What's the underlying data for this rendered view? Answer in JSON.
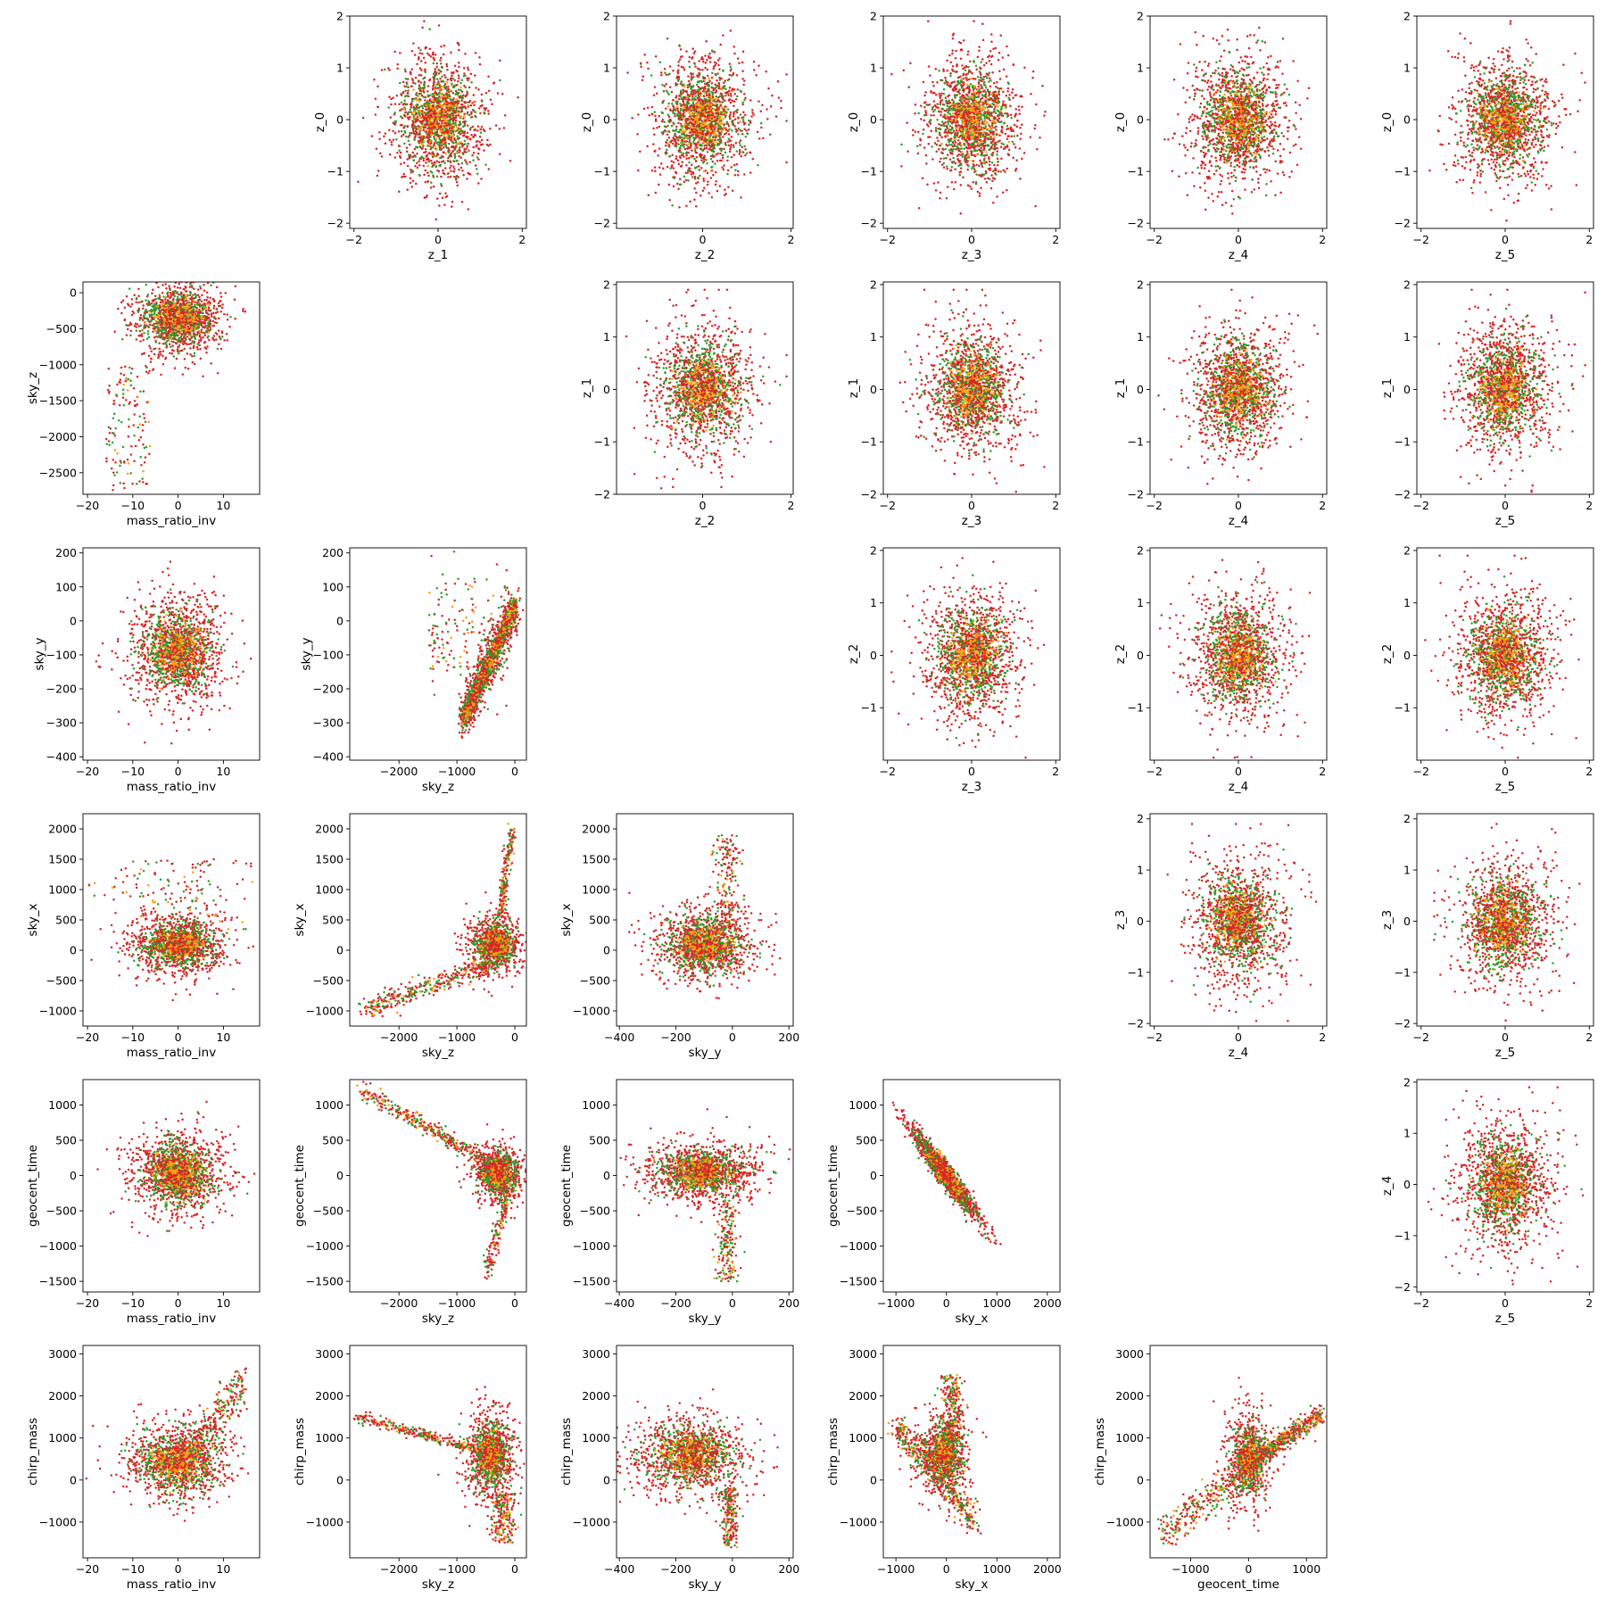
{
  "colors": {
    "red": "#d62728",
    "green": "#2ca02c",
    "orange": "#ff9f0e"
  },
  "variables": {
    "z_0": "z_0",
    "z_1": "z_1",
    "z_2": "z_2",
    "z_3": "z_3",
    "z_4": "z_4",
    "z_5": "z_5",
    "mass_ratio_inv": "mass_ratio_inv",
    "sky_z": "sky_z",
    "sky_y": "sky_y",
    "sky_x": "sky_x",
    "geocent_time": "geocent_time",
    "chirp_mass": "chirp_mass"
  },
  "chart_data": [
    {
      "type": "scatter",
      "row": 0,
      "col": 1,
      "xlabel": "z_1",
      "ylabel": "z_0",
      "xlim": [
        -2.1,
        2.1
      ],
      "ylim": [
        -2.1,
        2.0
      ],
      "xticks": [
        -2,
        0,
        2
      ],
      "yticks": [
        -2,
        -1,
        0,
        1,
        2
      ],
      "shape": "gaussian",
      "sigma": [
        0.6,
        0.65
      ]
    },
    {
      "type": "scatter",
      "row": 0,
      "col": 2,
      "xlabel": "z_2",
      "ylabel": "z_0",
      "xlim": [
        -1.95,
        2.05
      ],
      "ylim": [
        -2.1,
        2.0
      ],
      "xticks": [
        0,
        2
      ],
      "yticks": [
        -2,
        -1,
        0,
        1,
        2
      ],
      "shape": "gaussian",
      "sigma": [
        0.6,
        0.65
      ]
    },
    {
      "type": "scatter",
      "row": 0,
      "col": 3,
      "xlabel": "z_3",
      "ylabel": "z_0",
      "xlim": [
        -2.1,
        2.1
      ],
      "ylim": [
        -2.1,
        2.0
      ],
      "xticks": [
        -2,
        0,
        2
      ],
      "yticks": [
        -2,
        -1,
        0,
        1,
        2
      ],
      "shape": "gaussian",
      "sigma": [
        0.6,
        0.65
      ]
    },
    {
      "type": "scatter",
      "row": 0,
      "col": 4,
      "xlabel": "z_4",
      "ylabel": "z_0",
      "xlim": [
        -2.1,
        2.1
      ],
      "ylim": [
        -2.1,
        2.0
      ],
      "xticks": [
        -2,
        0,
        2
      ],
      "yticks": [
        -2,
        -1,
        0,
        1,
        2
      ],
      "shape": "gaussian",
      "sigma": [
        0.6,
        0.65
      ]
    },
    {
      "type": "scatter",
      "row": 0,
      "col": 5,
      "xlabel": "z_5",
      "ylabel": "z_0",
      "xlim": [
        -2.1,
        2.1
      ],
      "ylim": [
        -2.1,
        2.0
      ],
      "xticks": [
        -2,
        0,
        2
      ],
      "yticks": [
        -2,
        -1,
        0,
        1,
        2
      ],
      "shape": "gaussian",
      "sigma": [
        0.6,
        0.65
      ]
    },
    {
      "type": "scatter",
      "row": 1,
      "col": 0,
      "xlabel": "mass_ratio_inv",
      "ylabel": "sky_z",
      "xlim": [
        -21,
        18
      ],
      "ylim": [
        -2800,
        150
      ],
      "xticks": [
        -20,
        -10,
        0,
        10
      ],
      "yticks": [
        -2500,
        -2000,
        -1500,
        -1000,
        -500,
        0
      ],
      "shape": "skyz_q"
    },
    {
      "type": "scatter",
      "row": 1,
      "col": 2,
      "xlabel": "z_2",
      "ylabel": "z_1",
      "xlim": [
        -1.95,
        2.05
      ],
      "ylim": [
        -2.0,
        2.05
      ],
      "xticks": [
        0,
        2
      ],
      "yticks": [
        -2,
        -1,
        0,
        1,
        2
      ],
      "shape": "gaussian",
      "sigma": [
        0.6,
        0.65
      ]
    },
    {
      "type": "scatter",
      "row": 1,
      "col": 3,
      "xlabel": "z_3",
      "ylabel": "z_1",
      "xlim": [
        -2.1,
        2.1
      ],
      "ylim": [
        -2.0,
        2.05
      ],
      "xticks": [
        -2,
        0,
        2
      ],
      "yticks": [
        -2,
        -1,
        0,
        1,
        2
      ],
      "shape": "gaussian",
      "sigma": [
        0.6,
        0.65
      ]
    },
    {
      "type": "scatter",
      "row": 1,
      "col": 4,
      "xlabel": "z_4",
      "ylabel": "z_1",
      "xlim": [
        -2.1,
        2.1
      ],
      "ylim": [
        -2.0,
        2.05
      ],
      "xticks": [
        -2,
        0,
        2
      ],
      "yticks": [
        -2,
        -1,
        0,
        1,
        2
      ],
      "shape": "gaussian",
      "sigma": [
        0.6,
        0.65
      ]
    },
    {
      "type": "scatter",
      "row": 1,
      "col": 5,
      "xlabel": "z_5",
      "ylabel": "z_1",
      "xlim": [
        -2.1,
        2.1
      ],
      "ylim": [
        -2.0,
        2.05
      ],
      "xticks": [
        -2,
        0,
        2
      ],
      "yticks": [
        -2,
        -1,
        0,
        1,
        2
      ],
      "shape": "gaussian",
      "sigma": [
        0.6,
        0.65
      ]
    },
    {
      "type": "scatter",
      "row": 2,
      "col": 0,
      "xlabel": "mass_ratio_inv",
      "ylabel": "sky_y",
      "xlim": [
        -21,
        18
      ],
      "ylim": [
        -410,
        215
      ],
      "xticks": [
        -20,
        -10,
        0,
        10
      ],
      "yticks": [
        -400,
        -300,
        -200,
        -100,
        0,
        100,
        200
      ],
      "shape": "skyy_q"
    },
    {
      "type": "scatter",
      "row": 2,
      "col": 1,
      "xlabel": "sky_z",
      "ylabel": "sky_y",
      "xlim": [
        -2850,
        200
      ],
      "ylim": [
        -410,
        215
      ],
      "xticks": [
        -2000,
        -1000,
        0
      ],
      "yticks": [
        -400,
        -300,
        -200,
        -100,
        0,
        100,
        200
      ],
      "shape": "skyy_skyz"
    },
    {
      "type": "scatter",
      "row": 2,
      "col": 3,
      "xlabel": "z_3",
      "ylabel": "z_2",
      "xlim": [
        -2.1,
        2.1
      ],
      "ylim": [
        -2.0,
        2.05
      ],
      "xticks": [
        -2,
        0,
        2
      ],
      "yticks": [
        -1,
        0,
        1,
        2
      ],
      "shape": "gaussian",
      "sigma": [
        0.6,
        0.65
      ]
    },
    {
      "type": "scatter",
      "row": 2,
      "col": 4,
      "xlabel": "z_4",
      "ylabel": "z_2",
      "xlim": [
        -2.1,
        2.1
      ],
      "ylim": [
        -2.0,
        2.05
      ],
      "xticks": [
        -2,
        0,
        2
      ],
      "yticks": [
        -1,
        0,
        1,
        2
      ],
      "shape": "gaussian",
      "sigma": [
        0.6,
        0.65
      ]
    },
    {
      "type": "scatter",
      "row": 2,
      "col": 5,
      "xlabel": "z_5",
      "ylabel": "z_2",
      "xlim": [
        -2.1,
        2.1
      ],
      "ylim": [
        -2.0,
        2.05
      ],
      "xticks": [
        -2,
        0,
        2
      ],
      "yticks": [
        -1,
        0,
        1,
        2
      ],
      "shape": "gaussian",
      "sigma": [
        0.6,
        0.65
      ]
    },
    {
      "type": "scatter",
      "row": 3,
      "col": 0,
      "xlabel": "mass_ratio_inv",
      "ylabel": "sky_x",
      "xlim": [
        -21,
        18
      ],
      "ylim": [
        -1250,
        2250
      ],
      "xticks": [
        -20,
        -10,
        0,
        10
      ],
      "yticks": [
        -1000,
        -500,
        0,
        500,
        1000,
        1500,
        2000
      ],
      "shape": "skyx_q"
    },
    {
      "type": "scatter",
      "row": 3,
      "col": 1,
      "xlabel": "sky_z",
      "ylabel": "sky_x",
      "xlim": [
        -2850,
        200
      ],
      "ylim": [
        -1250,
        2250
      ],
      "xticks": [
        -2000,
        -1000,
        0
      ],
      "yticks": [
        -1000,
        -500,
        0,
        500,
        1000,
        1500,
        2000
      ],
      "shape": "skyx_skyz"
    },
    {
      "type": "scatter",
      "row": 3,
      "col": 2,
      "xlabel": "sky_y",
      "ylabel": "sky_x",
      "xlim": [
        -410,
        215
      ],
      "ylim": [
        -1250,
        2250
      ],
      "xticks": [
        -400,
        -200,
        0,
        200
      ],
      "yticks": [
        -1000,
        -500,
        0,
        500,
        1000,
        1500,
        2000
      ],
      "shape": "skyx_skyy"
    },
    {
      "type": "scatter",
      "row": 3,
      "col": 4,
      "xlabel": "z_4",
      "ylabel": "z_3",
      "xlim": [
        -2.1,
        2.1
      ],
      "ylim": [
        -2.05,
        2.1
      ],
      "xticks": [
        -2,
        0,
        2
      ],
      "yticks": [
        -2,
        -1,
        0,
        1,
        2
      ],
      "shape": "gaussian",
      "sigma": [
        0.6,
        0.65
      ]
    },
    {
      "type": "scatter",
      "row": 3,
      "col": 5,
      "xlabel": "z_5",
      "ylabel": "z_3",
      "xlim": [
        -2.1,
        2.1
      ],
      "ylim": [
        -2.05,
        2.1
      ],
      "xticks": [
        -2,
        0,
        2
      ],
      "yticks": [
        -2,
        -1,
        0,
        1,
        2
      ],
      "shape": "gaussian",
      "sigma": [
        0.6,
        0.65
      ]
    },
    {
      "type": "scatter",
      "row": 4,
      "col": 0,
      "xlabel": "mass_ratio_inv",
      "ylabel": "geocent_time",
      "xlim": [
        -21,
        18
      ],
      "ylim": [
        -1650,
        1360
      ],
      "xticks": [
        -20,
        -10,
        0,
        10
      ],
      "yticks": [
        -1500,
        -1000,
        -500,
        0,
        500,
        1000
      ],
      "shape": "t_q"
    },
    {
      "type": "scatter",
      "row": 4,
      "col": 1,
      "xlabel": "sky_z",
      "ylabel": "geocent_time",
      "xlim": [
        -2850,
        200
      ],
      "ylim": [
        -1650,
        1360
      ],
      "xticks": [
        -2000,
        -1000,
        0
      ],
      "yticks": [
        -1500,
        -1000,
        -500,
        0,
        500,
        1000
      ],
      "shape": "t_skyz"
    },
    {
      "type": "scatter",
      "row": 4,
      "col": 2,
      "xlabel": "sky_y",
      "ylabel": "geocent_time",
      "xlim": [
        -410,
        215
      ],
      "ylim": [
        -1650,
        1360
      ],
      "xticks": [
        -400,
        -200,
        0,
        200
      ],
      "yticks": [
        -1500,
        -1000,
        -500,
        0,
        500,
        1000
      ],
      "shape": "t_skyy"
    },
    {
      "type": "scatter",
      "row": 4,
      "col": 3,
      "xlabel": "sky_x",
      "ylabel": "geocent_time",
      "xlim": [
        -1250,
        2250
      ],
      "ylim": [
        -1650,
        1360
      ],
      "xticks": [
        -1000,
        0,
        1000,
        2000
      ],
      "yticks": [
        -1500,
        -1000,
        -500,
        0,
        500,
        1000
      ],
      "shape": "t_skyx"
    },
    {
      "type": "scatter",
      "row": 4,
      "col": 5,
      "xlabel": "z_5",
      "ylabel": "z_4",
      "xlim": [
        -2.1,
        2.1
      ],
      "ylim": [
        -2.1,
        2.05
      ],
      "xticks": [
        -2,
        0,
        2
      ],
      "yticks": [
        -2,
        -1,
        0,
        1,
        2
      ],
      "shape": "gaussian",
      "sigma": [
        0.6,
        0.65
      ]
    },
    {
      "type": "scatter",
      "row": 5,
      "col": 0,
      "xlabel": "mass_ratio_inv",
      "ylabel": "chirp_mass",
      "xlim": [
        -21,
        18
      ],
      "ylim": [
        -1850,
        3200
      ],
      "xticks": [
        -20,
        -10,
        0,
        10
      ],
      "yticks": [
        -1000,
        0,
        1000,
        2000,
        3000
      ],
      "shape": "mc_q"
    },
    {
      "type": "scatter",
      "row": 5,
      "col": 1,
      "xlabel": "sky_z",
      "ylabel": "chirp_mass",
      "xlim": [
        -2850,
        200
      ],
      "ylim": [
        -1850,
        3200
      ],
      "xticks": [
        -2000,
        -1000,
        0
      ],
      "yticks": [
        -1000,
        0,
        1000,
        2000,
        3000
      ],
      "shape": "mc_skyz"
    },
    {
      "type": "scatter",
      "row": 5,
      "col": 2,
      "xlabel": "sky_y",
      "ylabel": "chirp_mass",
      "xlim": [
        -410,
        215
      ],
      "ylim": [
        -1850,
        3200
      ],
      "xticks": [
        -400,
        -200,
        0,
        200
      ],
      "yticks": [
        -1000,
        0,
        1000,
        2000,
        3000
      ],
      "shape": "mc_skyy"
    },
    {
      "type": "scatter",
      "row": 5,
      "col": 3,
      "xlabel": "sky_x",
      "ylabel": "chirp_mass",
      "xlim": [
        -1250,
        2250
      ],
      "ylim": [
        -1850,
        3200
      ],
      "xticks": [
        -1000,
        0,
        1000,
        2000
      ],
      "yticks": [
        -1000,
        0,
        1000,
        2000,
        3000
      ],
      "shape": "mc_skyx"
    },
    {
      "type": "scatter",
      "row": 5,
      "col": 4,
      "xlabel": "geocent_time",
      "ylabel": "chirp_mass",
      "xlim": [
        -1700,
        1350
      ],
      "ylim": [
        -1850,
        3200
      ],
      "xticks": [
        -1000,
        0,
        1000
      ],
      "yticks": [
        -1000,
        0,
        1000,
        2000,
        3000
      ],
      "shape": "mc_t"
    }
  ]
}
